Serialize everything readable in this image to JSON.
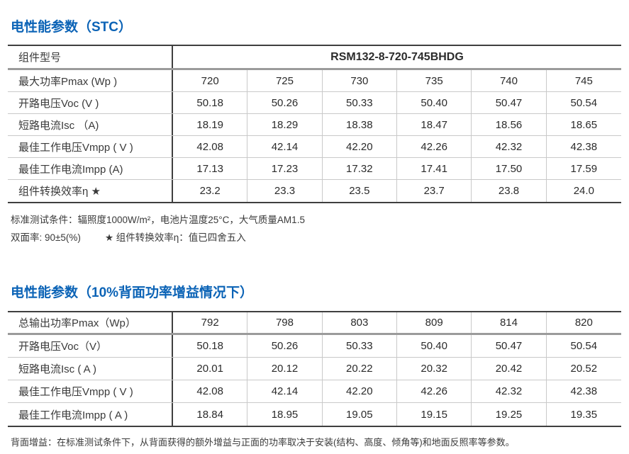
{
  "colors": {
    "accent_blue": "#0b63b6",
    "text_dark": "#3a3a3a",
    "line_light": "#c9c9c9",
    "line_thick_gray": "#9b9b9b",
    "line_dark": "#3f3f3f"
  },
  "section1": {
    "title": "电性能参数（STC）",
    "table": {
      "header_label": "组件型号",
      "header_value": "RSM132-8-720-745BHDG",
      "rows": [
        {
          "label": "最大功率Pmax (Wp )",
          "values": [
            "720",
            "725",
            "730",
            "735",
            "740",
            "745"
          ]
        },
        {
          "label": "开路电压Voc (V )",
          "values": [
            "50.18",
            "50.26",
            "50.33",
            "50.40",
            "50.47",
            "50.54"
          ]
        },
        {
          "label": "短路电流Isc （A)",
          "values": [
            "18.19",
            "18.29",
            "18.38",
            "18.47",
            "18.56",
            "18.65"
          ]
        },
        {
          "label": "最佳工作电压Vmpp ( V )",
          "values": [
            "42.08",
            "42.14",
            "42.20",
            "42.26",
            "42.32",
            "42.38"
          ]
        },
        {
          "label": "最佳工作电流Impp (A)",
          "values": [
            "17.13",
            "17.23",
            "17.32",
            "17.41",
            "17.50",
            "17.59"
          ]
        },
        {
          "label": "组件转换效率η ★",
          "values": [
            "23.2",
            "23.3",
            "23.5",
            "23.7",
            "23.8",
            "24.0"
          ]
        }
      ]
    },
    "note_line1": "标准测试条件：辐照度1000W/m²，电池片温度25°C，大气质量AM1.5",
    "note_line2a": "双面率: 90±5(%)",
    "note_line2b": "★ 组件转换效率η：值已四舍五入"
  },
  "section2": {
    "title": "电性能参数（10%背面功率增益情况下）",
    "table": {
      "rows": [
        {
          "label": "总输出功率Pmax（Wp）",
          "values": [
            "792",
            "798",
            "803",
            "809",
            "814",
            "820"
          ]
        },
        {
          "label": "开路电压Voc（V）",
          "values": [
            "50.18",
            "50.26",
            "50.33",
            "50.40",
            "50.47",
            "50.54"
          ]
        },
        {
          "label": "短路电流Isc ( A )",
          "values": [
            "20.01",
            "20.12",
            "20.22",
            "20.32",
            "20.42",
            "20.52"
          ]
        },
        {
          "label": "最佳工作电压Vmpp ( V )",
          "values": [
            "42.08",
            "42.14",
            "42.20",
            "42.26",
            "42.32",
            "42.38"
          ]
        },
        {
          "label": "最佳工作电流Impp ( A )",
          "values": [
            "18.84",
            "18.95",
            "19.05",
            "19.15",
            "19.25",
            "19.35"
          ]
        }
      ]
    }
  },
  "footer_note": "背面增益：在标准测试条件下，从背面获得的额外增益与正面的功率取决于安装(结构、高度、倾角等)和地面反照率等参数。"
}
